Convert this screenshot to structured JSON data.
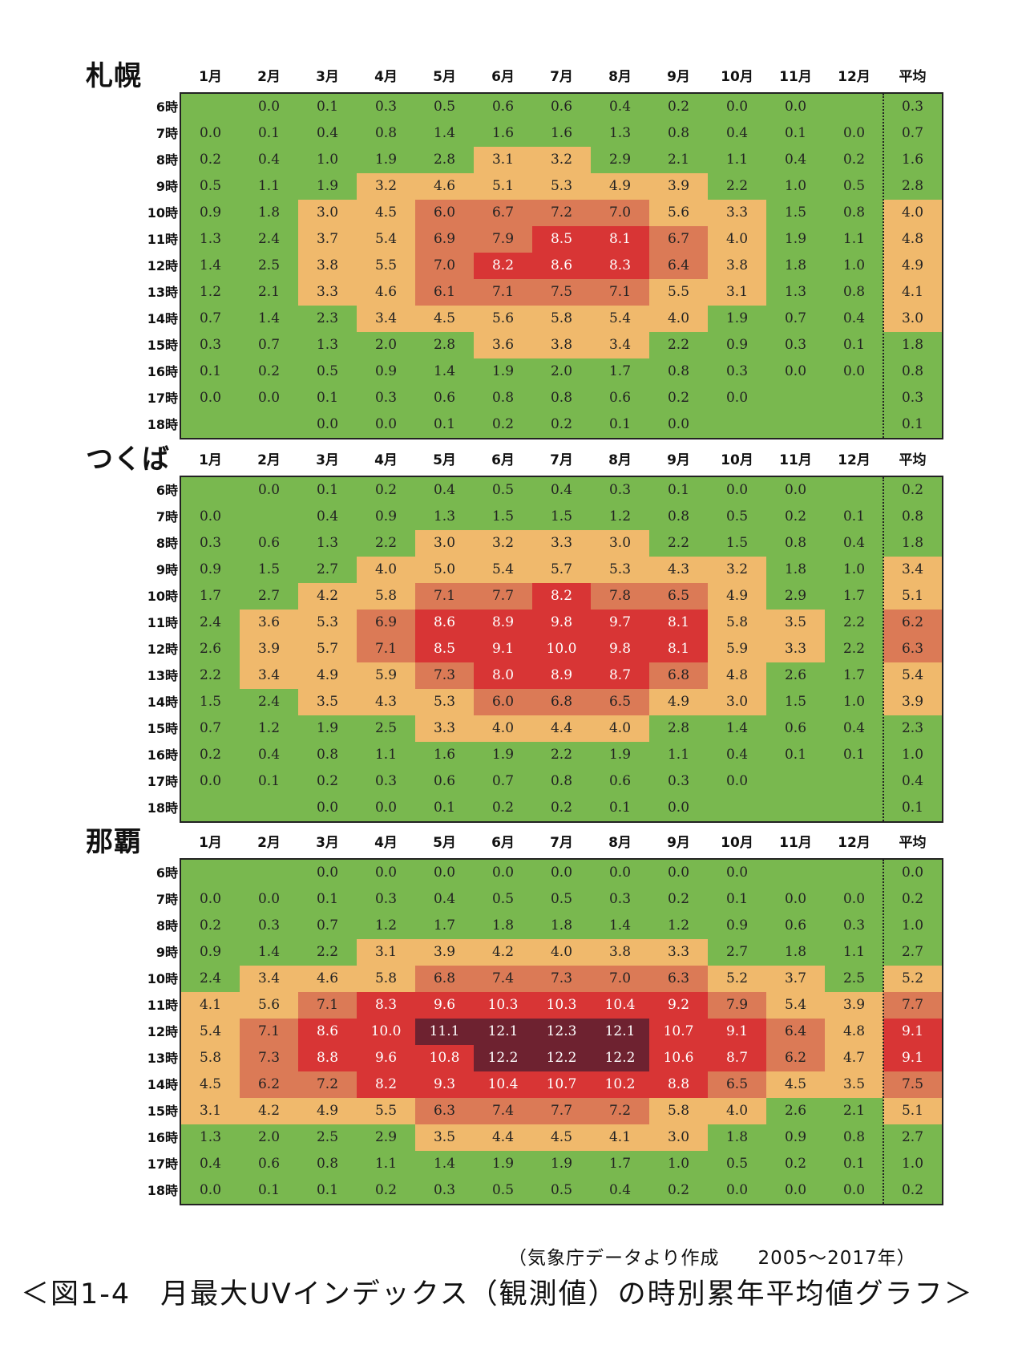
{
  "chart_data": {
    "type": "heatmap",
    "columns": [
      "1月",
      "2月",
      "3月",
      "4月",
      "5月",
      "6月",
      "7月",
      "8月",
      "9月",
      "10月",
      "11月",
      "12月",
      "平均"
    ],
    "rows": [
      "6時",
      "7時",
      "8時",
      "9時",
      "10時",
      "11時",
      "12時",
      "13時",
      "14時",
      "15時",
      "16時",
      "17時",
      "18時"
    ],
    "colors": {
      "low": "#79b84f",
      "mid": "#f0b96c",
      "high": "#db7a56",
      "very_high": "#d83535",
      "extreme": "#6e2230"
    },
    "panels": [
      {
        "name": "札幌",
        "values": [
          [
            null,
            0.0,
            0.1,
            0.3,
            0.5,
            0.6,
            0.6,
            0.4,
            0.2,
            0.0,
            0.0,
            null,
            0.3
          ],
          [
            0.0,
            0.1,
            0.4,
            0.8,
            1.4,
            1.6,
            1.6,
            1.3,
            0.8,
            0.4,
            0.1,
            0.0,
            0.7
          ],
          [
            0.2,
            0.4,
            1.0,
            1.9,
            2.8,
            3.1,
            3.2,
            2.9,
            2.1,
            1.1,
            0.4,
            0.2,
            1.6
          ],
          [
            0.5,
            1.1,
            1.9,
            3.2,
            4.6,
            5.1,
            5.3,
            4.9,
            3.9,
            2.2,
            1.0,
            0.5,
            2.8
          ],
          [
            0.9,
            1.8,
            3.0,
            4.5,
            6.0,
            6.7,
            7.2,
            7.0,
            5.6,
            3.3,
            1.5,
            0.8,
            4.0
          ],
          [
            1.3,
            2.4,
            3.7,
            5.4,
            6.9,
            7.9,
            8.5,
            8.1,
            6.7,
            4.0,
            1.9,
            1.1,
            4.8
          ],
          [
            1.4,
            2.5,
            3.8,
            5.5,
            7.0,
            8.2,
            8.6,
            8.3,
            6.4,
            3.8,
            1.8,
            1.0,
            4.9
          ],
          [
            1.2,
            2.1,
            3.3,
            4.6,
            6.1,
            7.1,
            7.5,
            7.1,
            5.5,
            3.1,
            1.3,
            0.8,
            4.1
          ],
          [
            0.7,
            1.4,
            2.3,
            3.4,
            4.5,
            5.6,
            5.8,
            5.4,
            4.0,
            1.9,
            0.7,
            0.4,
            3.0
          ],
          [
            0.3,
            0.7,
            1.3,
            2.0,
            2.8,
            3.6,
            3.8,
            3.4,
            2.2,
            0.9,
            0.3,
            0.1,
            1.8
          ],
          [
            0.1,
            0.2,
            0.5,
            0.9,
            1.4,
            1.9,
            2.0,
            1.7,
            0.8,
            0.3,
            0.0,
            0.0,
            0.8
          ],
          [
            0.0,
            0.0,
            0.1,
            0.3,
            0.6,
            0.8,
            0.8,
            0.6,
            0.2,
            0.0,
            null,
            null,
            0.3
          ],
          [
            null,
            null,
            0.0,
            0.0,
            0.1,
            0.2,
            0.2,
            0.1,
            0.0,
            null,
            null,
            null,
            0.1
          ]
        ]
      },
      {
        "name": "つくば",
        "values": [
          [
            null,
            0.0,
            0.1,
            0.2,
            0.4,
            0.5,
            0.4,
            0.3,
            0.1,
            0.0,
            0.0,
            null,
            0.2
          ],
          [
            0.0,
            null,
            0.4,
            0.9,
            1.3,
            1.5,
            1.5,
            1.2,
            0.8,
            0.5,
            0.2,
            0.1,
            0.8
          ],
          [
            0.3,
            0.6,
            1.3,
            2.2,
            3.0,
            3.2,
            3.3,
            3.0,
            2.2,
            1.5,
            0.8,
            0.4,
            1.8
          ],
          [
            0.9,
            1.5,
            2.7,
            4.0,
            5.0,
            5.4,
            5.7,
            5.3,
            4.3,
            3.2,
            1.8,
            1.0,
            3.4
          ],
          [
            1.7,
            2.7,
            4.2,
            5.8,
            7.1,
            7.7,
            8.2,
            7.8,
            6.5,
            4.9,
            2.9,
            1.7,
            5.1
          ],
          [
            2.4,
            3.6,
            5.3,
            6.9,
            8.6,
            8.9,
            9.8,
            9.7,
            8.1,
            5.8,
            3.5,
            2.2,
            6.2
          ],
          [
            2.6,
            3.9,
            5.7,
            7.1,
            8.5,
            9.1,
            10.0,
            9.8,
            8.1,
            5.9,
            3.3,
            2.2,
            6.3
          ],
          [
            2.2,
            3.4,
            4.9,
            5.9,
            7.3,
            8.0,
            8.9,
            8.7,
            6.8,
            4.8,
            2.6,
            1.7,
            5.4
          ],
          [
            1.5,
            2.4,
            3.5,
            4.3,
            5.3,
            6.0,
            6.8,
            6.5,
            4.9,
            3.0,
            1.5,
            1.0,
            3.9
          ],
          [
            0.7,
            1.2,
            1.9,
            2.5,
            3.3,
            4.0,
            4.4,
            4.0,
            2.8,
            1.4,
            0.6,
            0.4,
            2.3
          ],
          [
            0.2,
            0.4,
            0.8,
            1.1,
            1.6,
            1.9,
            2.2,
            1.9,
            1.1,
            0.4,
            0.1,
            0.1,
            1.0
          ],
          [
            0.0,
            0.1,
            0.2,
            0.3,
            0.6,
            0.7,
            0.8,
            0.6,
            0.3,
            0.0,
            null,
            null,
            0.4
          ],
          [
            null,
            null,
            0.0,
            0.0,
            0.1,
            0.2,
            0.2,
            0.1,
            0.0,
            null,
            null,
            null,
            0.1
          ]
        ]
      },
      {
        "name": "那覇",
        "values": [
          [
            null,
            null,
            0.0,
            0.0,
            0.0,
            0.0,
            0.0,
            0.0,
            0.0,
            0.0,
            null,
            null,
            0.0
          ],
          [
            0.0,
            0.0,
            0.1,
            0.3,
            0.4,
            0.5,
            0.5,
            0.3,
            0.2,
            0.1,
            0.0,
            0.0,
            0.2
          ],
          [
            0.2,
            0.3,
            0.7,
            1.2,
            1.7,
            1.8,
            1.8,
            1.4,
            1.2,
            0.9,
            0.6,
            0.3,
            1.0
          ],
          [
            0.9,
            1.4,
            2.2,
            3.1,
            3.9,
            4.2,
            4.0,
            3.8,
            3.3,
            2.7,
            1.8,
            1.1,
            2.7
          ],
          [
            2.4,
            3.4,
            4.6,
            5.8,
            6.8,
            7.4,
            7.3,
            7.0,
            6.3,
            5.2,
            3.7,
            2.5,
            5.2
          ],
          [
            4.1,
            5.6,
            7.1,
            8.3,
            9.6,
            10.3,
            10.3,
            10.4,
            9.2,
            7.9,
            5.4,
            3.9,
            7.7
          ],
          [
            5.4,
            7.1,
            8.6,
            10.0,
            11.1,
            12.1,
            12.3,
            12.1,
            10.7,
            9.1,
            6.4,
            4.8,
            9.1
          ],
          [
            5.8,
            7.3,
            8.8,
            9.6,
            10.8,
            12.2,
            12.2,
            12.2,
            10.6,
            8.7,
            6.2,
            4.7,
            9.1
          ],
          [
            4.5,
            6.2,
            7.2,
            8.2,
            9.3,
            10.4,
            10.7,
            10.2,
            8.8,
            6.5,
            4.5,
            3.5,
            7.5
          ],
          [
            3.1,
            4.2,
            4.9,
            5.5,
            6.3,
            7.4,
            7.7,
            7.2,
            5.8,
            4.0,
            2.6,
            2.1,
            5.1
          ],
          [
            1.3,
            2.0,
            2.5,
            2.9,
            3.5,
            4.4,
            4.5,
            4.1,
            3.0,
            1.8,
            0.9,
            0.8,
            2.7
          ],
          [
            0.4,
            0.6,
            0.8,
            1.1,
            1.4,
            1.9,
            1.9,
            1.7,
            1.0,
            0.5,
            0.2,
            0.1,
            1.0
          ],
          [
            0.0,
            0.1,
            0.1,
            0.2,
            0.3,
            0.5,
            0.5,
            0.4,
            0.2,
            0.0,
            0.0,
            0.0,
            0.2
          ]
        ]
      }
    ]
  },
  "source_note": "（気象庁データより作成　　2005～2017年）",
  "caption": "＜図1-4　月最大UVインデックス（観測値）の時別累年平均値グラフ＞"
}
